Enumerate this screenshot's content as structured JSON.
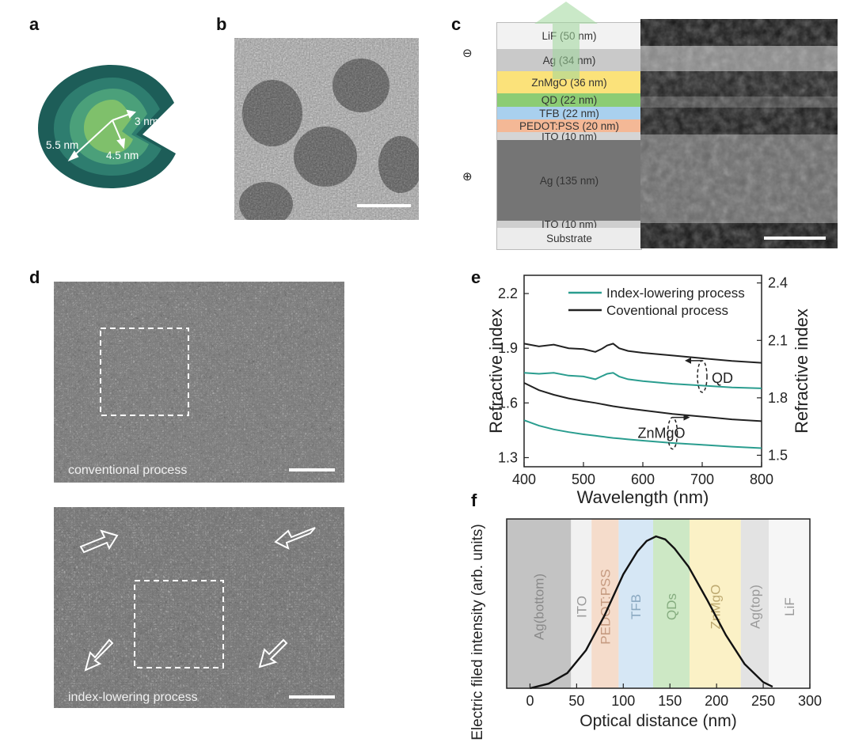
{
  "panels": {
    "a": "a",
    "b": "b",
    "c": "c",
    "d": "d",
    "e": "e",
    "f": "f"
  },
  "panel_a": {
    "labels": [
      "5.5 nm",
      "4.5 nm",
      "3 nm"
    ]
  },
  "panel_c": {
    "minus_sign": "⊖",
    "plus_sign": "⊕",
    "layers": [
      {
        "label": "LiF (50 nm)",
        "color": "#f2f2f2"
      },
      {
        "label": "Ag (34 nm)",
        "color": "#c9c9c9"
      },
      {
        "label": "ZnMgO (36 nm)",
        "color": "#fbe27a"
      },
      {
        "label": "QD (22 nm)",
        "color": "#8ccc74"
      },
      {
        "label": "TFB (22 nm)",
        "color": "#a9d0ee"
      },
      {
        "label": "PEDOT:PSS (20 nm)",
        "color": "#f4b896"
      },
      {
        "label": "ITO (10 nm)",
        "color": "#d5d5d5"
      },
      {
        "label": "Ag (135 nm)",
        "color": "#757575"
      },
      {
        "label": "ITO (10 nm)",
        "color": "#cfcfcf"
      },
      {
        "label": "Substrate",
        "color": "#ececec"
      }
    ]
  },
  "panel_d": {
    "top_label": "conventional process",
    "bottom_label": "index-lowering process"
  },
  "chart_data": [
    {
      "type": "line",
      "panel": "e",
      "xlabel": "Wavelength (nm)",
      "ylabel": "Refractive index",
      "ylabel_right": "Refractive index",
      "xlim": [
        400,
        800
      ],
      "ylim": [
        1.25,
        2.3
      ],
      "ylim_right": [
        1.44,
        2.44
      ],
      "x_ticks": [
        400,
        500,
        600,
        700,
        800
      ],
      "y_ticks": [
        1.3,
        1.6,
        1.9,
        2.2
      ],
      "y_ticks_right": [
        1.5,
        1.8,
        2.1,
        2.4
      ],
      "legend": [
        {
          "name": "Index-lowering process",
          "color": "#2a9d8f"
        },
        {
          "name": "Coventional process",
          "color": "#222222"
        }
      ],
      "annotations": [
        "QD",
        "ZnMgO"
      ],
      "x": [
        400,
        425,
        450,
        475,
        500,
        520,
        530,
        540,
        550,
        560,
        575,
        600,
        650,
        700,
        750,
        800
      ],
      "series": [
        {
          "name": "Coventional process",
          "group": "QD",
          "color": "#222222",
          "values": [
            1.925,
            1.91,
            1.92,
            1.9,
            1.895,
            1.88,
            1.895,
            1.915,
            1.925,
            1.9,
            1.885,
            1.875,
            1.86,
            1.845,
            1.83,
            1.82
          ]
        },
        {
          "name": "Index-lowering process",
          "group": "QD",
          "color": "#2a9d8f",
          "values": [
            1.765,
            1.76,
            1.765,
            1.75,
            1.745,
            1.73,
            1.745,
            1.76,
            1.765,
            1.745,
            1.73,
            1.72,
            1.705,
            1.695,
            1.685,
            1.68
          ]
        },
        {
          "name": "Coventional process",
          "group": "ZnMgO",
          "color": "#222222",
          "values": [
            1.71,
            1.67,
            1.645,
            1.625,
            1.61,
            1.6,
            1.594,
            1.588,
            1.582,
            1.577,
            1.57,
            1.56,
            1.54,
            1.525,
            1.51,
            1.5
          ]
        },
        {
          "name": "Index-lowering process",
          "group": "ZnMgO",
          "color": "#2a9d8f",
          "values": [
            1.505,
            1.475,
            1.455,
            1.44,
            1.428,
            1.42,
            1.416,
            1.412,
            1.408,
            1.405,
            1.4,
            1.393,
            1.38,
            1.37,
            1.36,
            1.352
          ]
        }
      ]
    },
    {
      "type": "area",
      "panel": "f",
      "xlabel": "Optical distance (nm)",
      "ylabel": "Electric filed intensity (arb. units)",
      "xlim": [
        -25,
        300
      ],
      "x_ticks": [
        0,
        50,
        100,
        150,
        200,
        250,
        300
      ],
      "regions": [
        {
          "label": "Ag(bottom)",
          "x0": -25,
          "x1": 44,
          "color": "#c3c3c3",
          "text_color": "#8a8a8a"
        },
        {
          "label": "ITO",
          "x0": 44,
          "x1": 66,
          "color": "#f1f1f1",
          "text_color": "#9a9a9a"
        },
        {
          "label": "PEDOT:PSS",
          "x0": 66,
          "x1": 95,
          "color": "#f5dccb",
          "text_color": "#c59a80"
        },
        {
          "label": "TFB",
          "x0": 95,
          "x1": 132,
          "color": "#d6e7f5",
          "text_color": "#8aa8c0"
        },
        {
          "label": "QDs",
          "x0": 132,
          "x1": 171,
          "color": "#cde8c5",
          "text_color": "#86ad80"
        },
        {
          "label": "ZnMgO",
          "x0": 171,
          "x1": 226,
          "color": "#fbf1c6",
          "text_color": "#bda970"
        },
        {
          "label": "Ag(top)",
          "x0": 226,
          "x1": 256,
          "color": "#e3e3e3",
          "text_color": "#9a9a9a"
        },
        {
          "label": "LiF",
          "x0": 256,
          "x1": 300,
          "color": "#f6f6f6",
          "text_color": "#9a9a9a"
        }
      ],
      "curve": {
        "color": "#111111",
        "x": [
          0,
          20,
          40,
          60,
          80,
          100,
          115,
          125,
          135,
          145,
          155,
          170,
          190,
          210,
          230,
          250,
          260
        ],
        "values": [
          0.0,
          0.03,
          0.1,
          0.25,
          0.48,
          0.75,
          0.9,
          0.97,
          1.0,
          0.98,
          0.92,
          0.8,
          0.58,
          0.35,
          0.16,
          0.04,
          0.01
        ]
      }
    }
  ]
}
